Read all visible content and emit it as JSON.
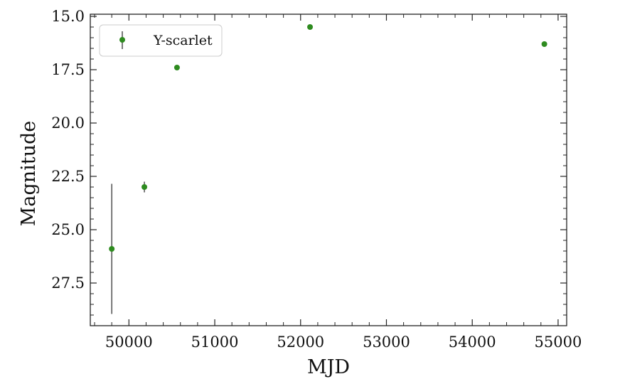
{
  "chart_data": {
    "type": "scatter",
    "xlabel": "MJD",
    "ylabel": "Magnitude",
    "xlim": [
      49550,
      55100
    ],
    "ylim": [
      29.5,
      14.9
    ],
    "y_inverted": true,
    "grid": false,
    "legend_placement": "top-left",
    "x_ticks": [
      50000,
      51000,
      52000,
      53000,
      54000,
      55000
    ],
    "x_tick_labels": [
      "50000",
      "51000",
      "52000",
      "53000",
      "54000",
      "55000"
    ],
    "y_ticks": [
      15.0,
      17.5,
      20.0,
      22.5,
      25.0,
      27.5
    ],
    "y_tick_labels": [
      "15.0",
      "17.5",
      "20.0",
      "22.5",
      "25.0",
      "27.5"
    ],
    "series": [
      {
        "name": "Y-scarlet",
        "color": "#2e8b1f",
        "errorbar_color": "#333333",
        "points": [
          {
            "x": 49800,
            "y": 25.9,
            "yerr": 3.05
          },
          {
            "x": 50180,
            "y": 23.0,
            "yerr": 0.25
          },
          {
            "x": 50560,
            "y": 17.4,
            "yerr": 0.0
          },
          {
            "x": 52110,
            "y": 15.5,
            "yerr": 0.0
          },
          {
            "x": 54840,
            "y": 16.3,
            "yerr": 0.0
          }
        ]
      }
    ]
  }
}
